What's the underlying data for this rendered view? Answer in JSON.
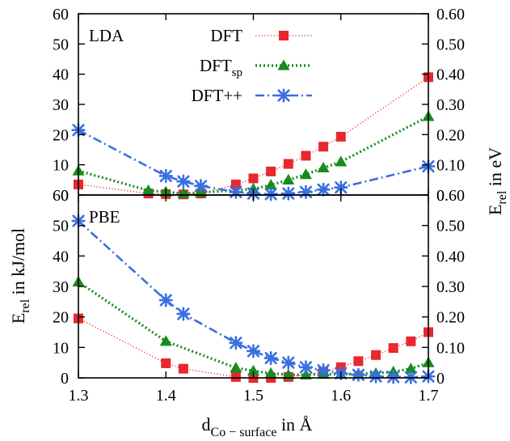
{
  "chart_data": [
    {
      "panel": "LDA",
      "label": "LDA",
      "type": "line",
      "xlim": [
        1.3,
        1.7
      ],
      "ylim": [
        0,
        60
      ],
      "ylim_right": [
        0,
        0.6
      ],
      "xticks": [
        "1.3",
        "1.4",
        "1.5",
        "1.6",
        "1.7"
      ],
      "yticks": [
        "0",
        "10",
        "20",
        "30",
        "40",
        "50",
        "60"
      ],
      "yticks_right": [
        "0",
        "0.10",
        "0.20",
        "0.30",
        "0.40",
        "0.50",
        "0.60"
      ],
      "grid": false,
      "legend_position": "top-center",
      "series": [
        {
          "name": "DFT",
          "color": "#e8282d",
          "marker": "square",
          "linestyle": "dotted",
          "x": [
            1.3,
            1.38,
            1.4,
            1.42,
            1.44,
            1.48,
            1.5,
            1.52,
            1.54,
            1.56,
            1.58,
            1.6,
            1.7
          ],
          "y": [
            3.5,
            0.5,
            0.3,
            0.2,
            0.5,
            3.5,
            5.5,
            7.8,
            10.3,
            13.0,
            16.0,
            19.3,
            39.0
          ]
        },
        {
          "name": "DFT",
          "name_subscript": "sp",
          "color": "#168c1e",
          "marker": "triangle",
          "linestyle": "dotted-thick",
          "x": [
            1.3,
            1.38,
            1.4,
            1.42,
            1.44,
            1.5,
            1.52,
            1.54,
            1.56,
            1.58,
            1.6,
            1.7
          ],
          "y": [
            8.0,
            1.5,
            1.0,
            0.5,
            0.8,
            2.0,
            3.3,
            5.0,
            6.8,
            9.0,
            11.0,
            26.0
          ]
        },
        {
          "name": "DFT++",
          "color": "#3a6fe2",
          "marker": "star",
          "linestyle": "dash-dot",
          "x": [
            1.3,
            1.4,
            1.42,
            1.44,
            1.48,
            1.5,
            1.52,
            1.54,
            1.56,
            1.58,
            1.6,
            1.7
          ],
          "y": [
            21.5,
            6.3,
            4.5,
            3.0,
            1.0,
            0.5,
            0.3,
            0.5,
            1.0,
            1.8,
            2.5,
            9.5
          ]
        }
      ]
    },
    {
      "panel": "PBE",
      "label": "PBE",
      "type": "line",
      "xlim": [
        1.3,
        1.7
      ],
      "ylim": [
        0,
        60
      ],
      "ylim_right": [
        0,
        0.6
      ],
      "xticks": [
        "1.3",
        "1.4",
        "1.5",
        "1.6",
        "1.7"
      ],
      "yticks": [
        "0",
        "10",
        "20",
        "30",
        "40",
        "50",
        "60"
      ],
      "yticks_right": [
        "0",
        "0.10",
        "0.20",
        "0.30",
        "0.40",
        "0.50",
        "0.60"
      ],
      "grid": false,
      "series": [
        {
          "name": "DFT",
          "color": "#e8282d",
          "marker": "square",
          "linestyle": "dotted",
          "x": [
            1.3,
            1.4,
            1.42,
            1.48,
            1.5,
            1.52,
            1.54,
            1.58,
            1.6,
            1.62,
            1.64,
            1.66,
            1.68,
            1.7
          ],
          "y": [
            19.5,
            4.8,
            3.0,
            0.3,
            0.0,
            0.0,
            0.3,
            2.0,
            3.5,
            5.5,
            7.5,
            9.8,
            12.0,
            15.0
          ]
        },
        {
          "name": "DFT",
          "name_subscript": "sp",
          "color": "#168c1e",
          "marker": "triangle",
          "linestyle": "dotted-thick",
          "x": [
            1.3,
            1.4,
            1.48,
            1.5,
            1.52,
            1.54,
            1.56,
            1.58,
            1.6,
            1.62,
            1.64,
            1.66,
            1.68,
            1.7
          ],
          "y": [
            31.5,
            12.0,
            3.3,
            2.3,
            1.5,
            1.0,
            1.0,
            1.2,
            1.2,
            1.3,
            1.5,
            2.0,
            3.0,
            5.0
          ]
        },
        {
          "name": "DFT++",
          "color": "#3a6fe2",
          "marker": "star",
          "linestyle": "dash-dot",
          "x": [
            1.3,
            1.4,
            1.42,
            1.48,
            1.5,
            1.52,
            1.54,
            1.56,
            1.58,
            1.6,
            1.62,
            1.64,
            1.66,
            1.68,
            1.7
          ],
          "y": [
            51.5,
            25.5,
            21.0,
            11.5,
            8.8,
            6.5,
            5.0,
            3.5,
            2.5,
            1.5,
            1.0,
            0.5,
            0.3,
            0.2,
            0.5
          ]
        }
      ]
    }
  ],
  "figure": {
    "ylabel_left_main": "E",
    "ylabel_left_sub": "rel",
    "ylabel_left_tail": " in kJ/mol",
    "ylabel_right_main": "E",
    "ylabel_right_sub": "rel",
    "ylabel_right_tail": " in eV",
    "xlabel_main": "d",
    "xlabel_sub": "Co − surface",
    "xlabel_tail": " in Å"
  }
}
